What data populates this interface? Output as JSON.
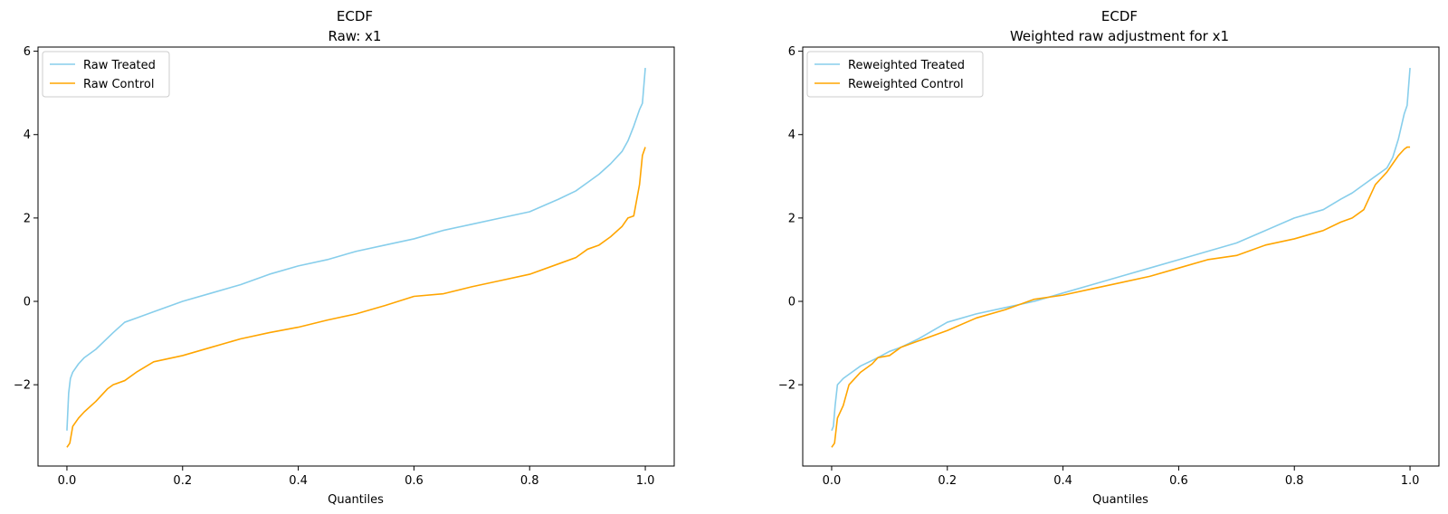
{
  "chart_data": [
    {
      "type": "line",
      "title": "ECDF",
      "subtitle": "Raw: x1",
      "xlabel": "Quantiles",
      "ylabel": "",
      "xlim": [
        -0.05,
        1.05
      ],
      "ylim": [
        -3.95,
        6.1
      ],
      "xticks": [
        0.0,
        0.2,
        0.4,
        0.6,
        0.8,
        1.0
      ],
      "xtick_labels": [
        "0.0",
        "0.2",
        "0.4",
        "0.6",
        "0.8",
        "1.0"
      ],
      "yticks": [
        -2,
        0,
        2,
        4,
        6
      ],
      "ytick_labels": [
        "−2",
        "0",
        "2",
        "4",
        "6"
      ],
      "grid": false,
      "legend": "top-left",
      "series": [
        {
          "name": "Raw Treated",
          "color": "#87CEEB",
          "x": [
            0.0,
            0.003,
            0.006,
            0.01,
            0.02,
            0.03,
            0.05,
            0.08,
            0.1,
            0.12,
            0.15,
            0.2,
            0.25,
            0.3,
            0.35,
            0.4,
            0.45,
            0.5,
            0.55,
            0.6,
            0.65,
            0.7,
            0.75,
            0.8,
            0.85,
            0.88,
            0.9,
            0.92,
            0.94,
            0.96,
            0.97,
            0.98,
            0.99,
            0.995,
            1.0
          ],
          "y": [
            -3.1,
            -2.2,
            -1.85,
            -1.7,
            -1.5,
            -1.35,
            -1.15,
            -0.75,
            -0.5,
            -0.4,
            -0.25,
            0.0,
            0.2,
            0.4,
            0.65,
            0.85,
            1.0,
            1.2,
            1.35,
            1.5,
            1.7,
            1.85,
            2.0,
            2.15,
            2.45,
            2.65,
            2.85,
            3.05,
            3.3,
            3.6,
            3.85,
            4.2,
            4.6,
            4.75,
            5.6
          ]
        },
        {
          "name": "Raw Control",
          "color": "#FFA500",
          "x": [
            0.0,
            0.005,
            0.01,
            0.02,
            0.03,
            0.05,
            0.07,
            0.08,
            0.1,
            0.12,
            0.15,
            0.2,
            0.25,
            0.3,
            0.35,
            0.4,
            0.45,
            0.5,
            0.55,
            0.6,
            0.65,
            0.7,
            0.75,
            0.8,
            0.85,
            0.88,
            0.9,
            0.92,
            0.94,
            0.96,
            0.97,
            0.98,
            0.99,
            0.995,
            1.0
          ],
          "y": [
            -3.5,
            -3.4,
            -3.0,
            -2.8,
            -2.65,
            -2.4,
            -2.1,
            -2.0,
            -1.9,
            -1.7,
            -1.45,
            -1.3,
            -1.1,
            -0.9,
            -0.75,
            -0.62,
            -0.45,
            -0.3,
            -0.1,
            0.12,
            0.18,
            0.35,
            0.5,
            0.65,
            0.9,
            1.05,
            1.25,
            1.35,
            1.55,
            1.8,
            2.0,
            2.05,
            2.8,
            3.5,
            3.7
          ]
        }
      ]
    },
    {
      "type": "line",
      "title": "ECDF",
      "subtitle": "Weighted raw adjustment for x1",
      "xlabel": "Quantiles",
      "ylabel": "",
      "xlim": [
        -0.05,
        1.05
      ],
      "ylim": [
        -3.95,
        6.1
      ],
      "xticks": [
        0.0,
        0.2,
        0.4,
        0.6,
        0.8,
        1.0
      ],
      "xtick_labels": [
        "0.0",
        "0.2",
        "0.4",
        "0.6",
        "0.8",
        "1.0"
      ],
      "yticks": [
        -2,
        0,
        2,
        4,
        6
      ],
      "ytick_labels": [
        "−2",
        "0",
        "2",
        "4",
        "6"
      ],
      "grid": false,
      "legend": "top-left",
      "series": [
        {
          "name": "Reweighted Treated",
          "color": "#87CEEB",
          "x": [
            0.0,
            0.003,
            0.006,
            0.01,
            0.02,
            0.03,
            0.05,
            0.08,
            0.1,
            0.12,
            0.15,
            0.2,
            0.25,
            0.3,
            0.35,
            0.4,
            0.45,
            0.5,
            0.55,
            0.6,
            0.65,
            0.7,
            0.75,
            0.8,
            0.85,
            0.88,
            0.9,
            0.92,
            0.94,
            0.96,
            0.97,
            0.98,
            0.99,
            0.995,
            1.0
          ],
          "y": [
            -3.1,
            -3.0,
            -2.5,
            -2.0,
            -1.85,
            -1.75,
            -1.55,
            -1.35,
            -1.2,
            -1.1,
            -0.9,
            -0.5,
            -0.3,
            -0.15,
            0.0,
            0.2,
            0.4,
            0.6,
            0.8,
            1.0,
            1.2,
            1.4,
            1.7,
            2.0,
            2.2,
            2.45,
            2.6,
            2.8,
            3.0,
            3.2,
            3.45,
            3.9,
            4.5,
            4.7,
            5.6
          ]
        },
        {
          "name": "Reweighted Control",
          "color": "#FFA500",
          "x": [
            0.0,
            0.005,
            0.01,
            0.02,
            0.03,
            0.05,
            0.07,
            0.08,
            0.1,
            0.12,
            0.15,
            0.2,
            0.25,
            0.3,
            0.35,
            0.4,
            0.45,
            0.5,
            0.55,
            0.6,
            0.65,
            0.7,
            0.75,
            0.8,
            0.85,
            0.88,
            0.9,
            0.92,
            0.94,
            0.96,
            0.97,
            0.98,
            0.99,
            0.995,
            1.0
          ],
          "y": [
            -3.5,
            -3.4,
            -2.8,
            -2.5,
            -2.0,
            -1.7,
            -1.5,
            -1.35,
            -1.3,
            -1.1,
            -0.95,
            -0.7,
            -0.4,
            -0.2,
            0.05,
            0.15,
            0.3,
            0.45,
            0.6,
            0.8,
            1.0,
            1.1,
            1.35,
            1.5,
            1.7,
            1.9,
            2.0,
            2.2,
            2.8,
            3.1,
            3.3,
            3.5,
            3.65,
            3.7,
            3.7
          ]
        }
      ]
    }
  ]
}
